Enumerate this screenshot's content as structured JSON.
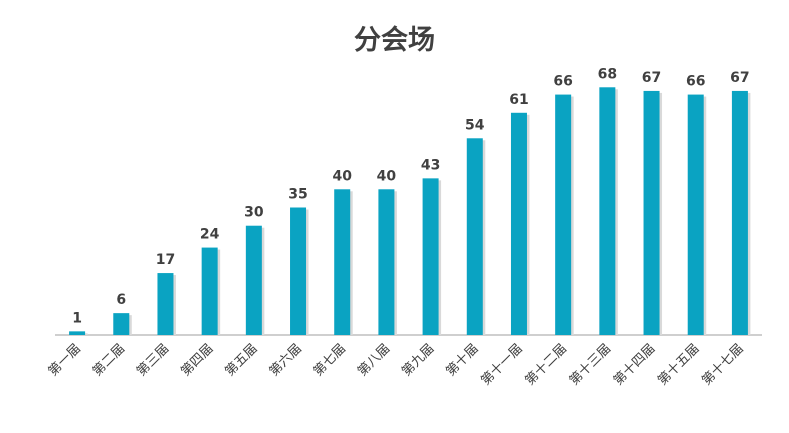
{
  "chart_data": {
    "type": "bar",
    "title": "分会场",
    "categories": [
      "第一届",
      "第二届",
      "第三届",
      "第四届",
      "第五届",
      "第六届",
      "第七届",
      "第八届",
      "第九届",
      "第十届",
      "第十一届",
      "第十二届",
      "第十三届",
      "第十四届",
      "第十五届",
      "第十七届"
    ],
    "values": [
      1,
      6,
      17,
      24,
      30,
      35,
      40,
      40,
      43,
      54,
      61,
      66,
      68,
      67,
      66,
      67
    ],
    "xlabel": "",
    "ylabel": "",
    "ylim": [
      0,
      70
    ],
    "grid": false,
    "legend": "none",
    "bar_color": "#0aa3c2",
    "data_labels": true
  }
}
